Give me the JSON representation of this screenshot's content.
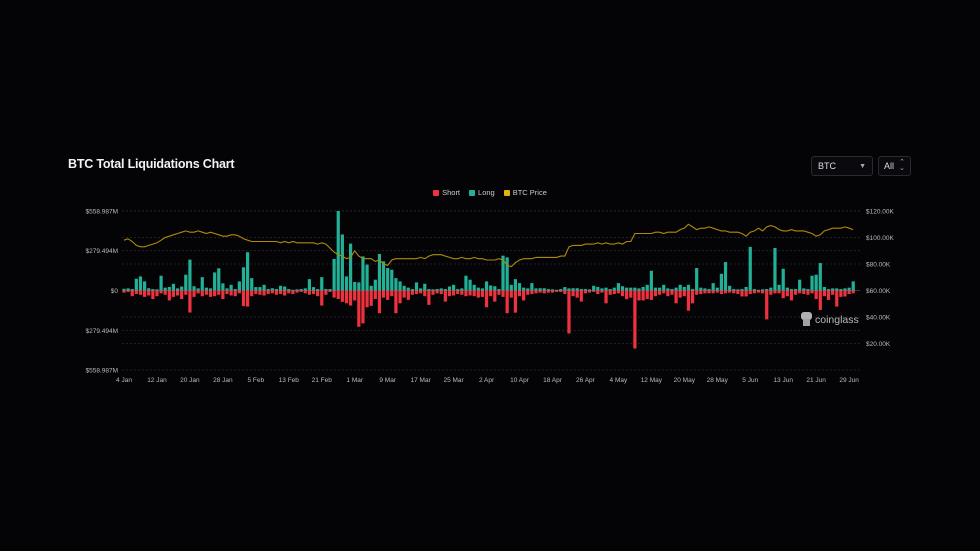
{
  "header": {
    "title": "BTC Total Liquidations Chart"
  },
  "controls": {
    "coin": "BTC",
    "range": "All"
  },
  "colors": {
    "short": "#f0323f",
    "long": "#22b096",
    "price": "#c9a20a",
    "background": "#040407"
  },
  "chart_data": {
    "type": "bar+line",
    "title": "BTC Total Liquidations Chart",
    "legend": {
      "placement": "top-center",
      "entries": [
        "Short",
        "Long",
        "BTC Price"
      ]
    },
    "grid": true,
    "start_date": "4 Jan",
    "x_tick_labels": [
      "4 Jan",
      "12 Jan",
      "20 Jan",
      "28 Jan",
      "5 Feb",
      "13 Feb",
      "21 Feb",
      "1 Mar",
      "9 Mar",
      "17 Mar",
      "25 Mar",
      "2 Apr",
      "10 Apr",
      "18 Apr",
      "26 Apr",
      "4 May",
      "12 May",
      "20 May",
      "28 May",
      "5 Jun",
      "13 Jun",
      "21 Jun",
      "29 Jun"
    ],
    "y_left": {
      "unit": "USD millions",
      "range": [
        -558.987,
        558.987
      ],
      "tick_labels": [
        "$558.987M",
        "$279.494M",
        "$0",
        "$279.494M",
        "$558.987M"
      ],
      "tick_values": [
        558.987,
        279.494,
        0,
        -279.494,
        -558.987
      ]
    },
    "y_right": {
      "unit": "USD thousands",
      "range": [
        0,
        120
      ],
      "tick_labels": [
        "$120.00K",
        "$100.00K",
        "$80.00K",
        "$60.00K",
        "$40.00K",
        "$20.00K"
      ],
      "tick_values": [
        120,
        100,
        80,
        60,
        40,
        20
      ]
    },
    "series": [
      {
        "name": "Long",
        "kind": "bar-up",
        "values": [
          12,
          15,
          10,
          83,
          99,
          64,
          16,
          10,
          8,
          104,
          20,
          25,
          47,
          15,
          28,
          111,
          217,
          30,
          15,
          94,
          20,
          15,
          127,
          156,
          50,
          15,
          40,
          10,
          64,
          163,
          269,
          87,
          24,
          24,
          40,
          10,
          16,
          10,
          33,
          28,
          10,
          5,
          8,
          10,
          15,
          80,
          24,
          10,
          94,
          10,
          10,
          222,
          559,
          394,
          99,
          330,
          60,
          57,
          240,
          182,
          33,
          76,
          257,
          205,
          158,
          146,
          87,
          64,
          33,
          20,
          10,
          57,
          15,
          47,
          10,
          8,
          10,
          15,
          10,
          28,
          40,
          10,
          15,
          104,
          76,
          40,
          20,
          15,
          64,
          35,
          30,
          10,
          245,
          233,
          40,
          80,
          52,
          20,
          15,
          52,
          15,
          16,
          16,
          10,
          8,
          5,
          10,
          24,
          15,
          16,
          16,
          10,
          10,
          8,
          33,
          25,
          15,
          20,
          10,
          20,
          52,
          30,
          20,
          20,
          20,
          15,
          25,
          40,
          139,
          20,
          20,
          40,
          15,
          10,
          20,
          40,
          25,
          40,
          10,
          158,
          20,
          15,
          10,
          52,
          20,
          118,
          200,
          33,
          10,
          8,
          10,
          25,
          307,
          10,
          5,
          8,
          10,
          20,
          299,
          40,
          153,
          20,
          10,
          10,
          76,
          15,
          10,
          104,
          111,
          193,
          25,
          10,
          15,
          15,
          10,
          15,
          20,
          64
        ]
      },
      {
        "name": "Short",
        "kind": "bar-down",
        "values": [
          15,
          10,
          40,
          25,
          30,
          45,
          35,
          60,
          40,
          20,
          30,
          70,
          45,
          35,
          60,
          30,
          155,
          45,
          20,
          40,
          30,
          45,
          40,
          30,
          60,
          25,
          35,
          40,
          20,
          110,
          113,
          40,
          25,
          30,
          35,
          25,
          20,
          30,
          25,
          35,
          20,
          25,
          15,
          10,
          20,
          30,
          25,
          40,
          106,
          30,
          10,
          50,
          60,
          80,
          90,
          106,
          70,
          255,
          231,
          118,
          108,
          60,
          160,
          50,
          66,
          40,
          160,
          90,
          50,
          66,
          30,
          25,
          20,
          40,
          101,
          30,
          20,
          25,
          78,
          40,
          35,
          25,
          30,
          40,
          35,
          40,
          50,
          45,
          118,
          40,
          78,
          30,
          45,
          160,
          50,
          156,
          40,
          70,
          30,
          25,
          20,
          15,
          20,
          15,
          15,
          10,
          10,
          25,
          302,
          40,
          50,
          78,
          20,
          15,
          10,
          25,
          15,
          90,
          30,
          25,
          20,
          40,
          61,
          50,
          408,
          70,
          70,
          60,
          66,
          40,
          30,
          20,
          40,
          30,
          90,
          50,
          40,
          142,
          90,
          30,
          25,
          20,
          20,
          20,
          15,
          25,
          20,
          15,
          20,
          25,
          42,
          42,
          25,
          20,
          15,
          20,
          203,
          30,
          20,
          20,
          54,
          40,
          70,
          30,
          20,
          25,
          30,
          20,
          60,
          137,
          40,
          66,
          30,
          113,
          45,
          42,
          25,
          20
        ]
      },
      {
        "name": "BTC Price",
        "kind": "line",
        "axis": "right",
        "values": [
          98,
          99,
          97,
          94,
          93,
          93,
          94,
          95,
          96,
          98,
          100,
          101,
          102,
          103,
          104,
          105,
          104,
          104,
          105,
          104,
          103,
          104,
          103,
          102,
          101,
          101,
          102,
          102,
          101,
          99,
          98,
          97,
          97,
          97,
          97,
          97,
          97,
          97,
          96,
          97,
          96,
          97,
          96,
          96,
          96,
          96,
          96,
          95,
          96,
          95,
          92,
          89,
          87,
          86,
          84,
          85,
          90,
          86,
          84,
          84,
          84,
          82,
          83,
          80,
          79,
          83,
          84,
          84,
          84,
          84,
          84,
          84,
          85,
          84,
          86,
          87,
          87,
          87,
          86,
          85,
          84,
          84,
          85,
          84,
          84,
          85,
          84,
          84,
          83,
          83,
          83,
          84,
          83,
          79,
          78,
          81,
          83,
          84,
          84,
          84,
          85,
          85,
          85,
          85,
          85,
          85,
          86,
          86,
          93,
          94,
          94,
          94,
          95,
          95,
          95,
          96,
          95,
          96,
          95,
          95,
          96,
          95,
          97,
          97,
          103,
          103,
          103,
          103,
          103,
          104,
          104,
          103,
          104,
          104,
          104,
          106,
          107,
          110,
          108,
          106,
          107,
          107,
          108,
          107,
          106,
          105,
          105,
          104,
          104,
          104,
          103,
          101,
          104,
          105,
          107,
          105,
          108,
          109,
          108,
          106,
          105,
          105,
          106,
          105,
          105,
          105,
          104,
          103,
          101,
          102,
          105,
          106,
          107,
          107,
          107,
          108,
          107,
          106
        ]
      }
    ]
  },
  "watermark": "coinglass"
}
